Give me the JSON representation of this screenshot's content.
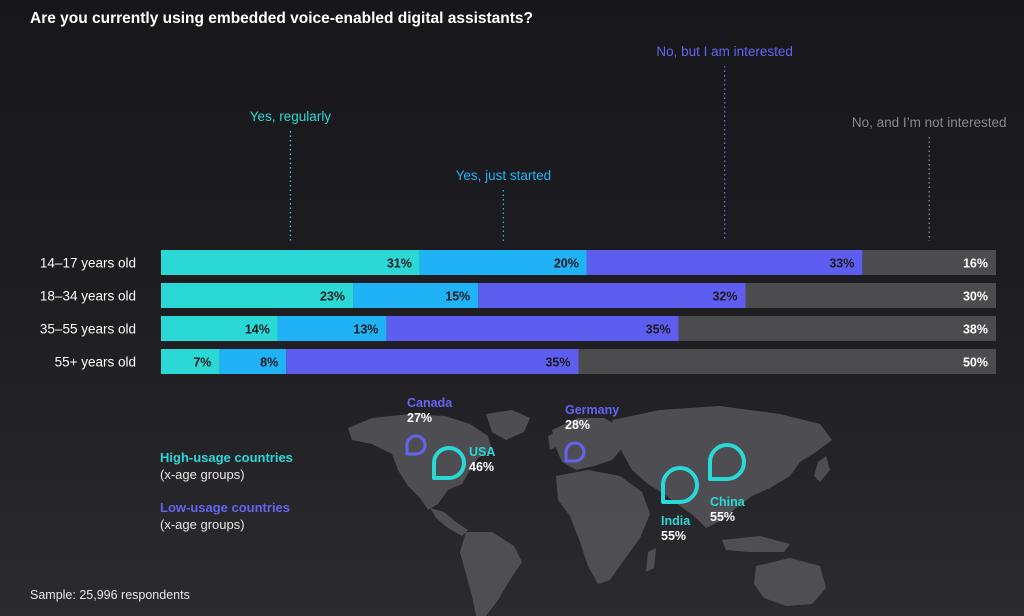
{
  "title": "Are you currently using embedded voice-enabled digital assistants?",
  "footer": "Sample: 25,996 respondents",
  "colors": {
    "yes_regularly": "#2ad8d6",
    "yes_just_started": "#1fb2f4",
    "no_interested": "#5d5df0",
    "no_not_interested": "#4c4c4f",
    "high_usage": "#2ad8d6",
    "low_usage": "#6464f0",
    "map": "#56565a"
  },
  "chart_data": {
    "type": "bar",
    "orientation": "horizontal",
    "stacked": true,
    "categories": [
      "14–17 years old",
      "18–34 years old",
      "35–55 years old",
      "55+ years old"
    ],
    "series": [
      {
        "name": "Yes, regularly",
        "values": [
          31,
          23,
          14,
          7
        ],
        "labels": [
          "31%",
          "23%",
          "14%",
          "7%"
        ]
      },
      {
        "name": "Yes, just started",
        "values": [
          20,
          15,
          13,
          8
        ],
        "labels": [
          "20%",
          "15%",
          "13%",
          "8%"
        ]
      },
      {
        "name": "No, but I am interested",
        "values": [
          33,
          32,
          35,
          35
        ],
        "labels": [
          "33%",
          "32%",
          "35%",
          "35%"
        ]
      },
      {
        "name": "No, and I’m not interested",
        "values": [
          16,
          30,
          38,
          50
        ],
        "labels": [
          "16%",
          "30%",
          "38%",
          "50%"
        ]
      }
    ],
    "xlim": [
      0,
      100
    ]
  },
  "legend": {
    "high_title": "High-usage countries",
    "high_sub": "(x-age groups)",
    "low_title": "Low-usage countries",
    "low_sub": "(x-age groups)"
  },
  "countries": [
    {
      "name": "Canada",
      "value": "27%",
      "group": "low"
    },
    {
      "name": "USA",
      "value": "46%",
      "group": "high"
    },
    {
      "name": "Germany",
      "value": "28%",
      "group": "low"
    },
    {
      "name": "India",
      "value": "55%",
      "group": "high"
    },
    {
      "name": "China",
      "value": "55%",
      "group": "high"
    }
  ]
}
